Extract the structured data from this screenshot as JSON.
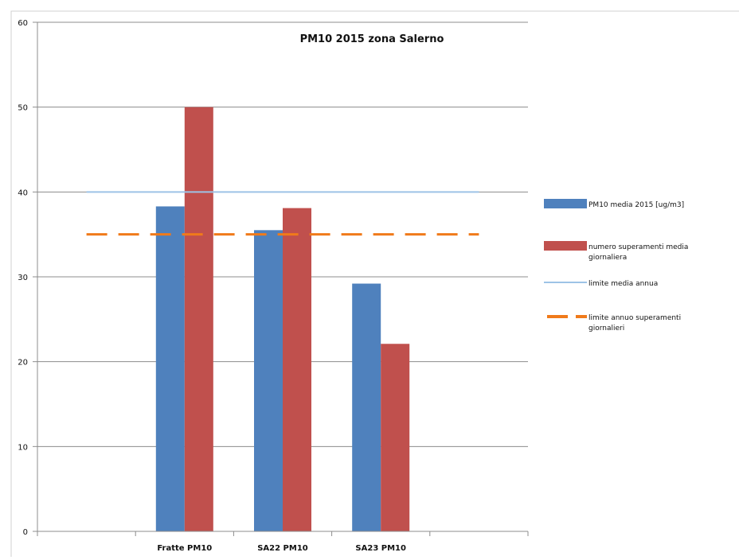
{
  "chart_data": {
    "type": "bar",
    "title": "PM10 2015 zona Salerno",
    "xlabel": "",
    "ylabel": "",
    "ylim": [
      0,
      60
    ],
    "yticks": [
      0,
      10,
      20,
      30,
      40,
      50,
      60
    ],
    "grid": true,
    "legend_position": "right",
    "categories": [
      "",
      "Fratte PM10",
      "SA22 PM10",
      "SA23 PM10",
      ""
    ],
    "series": [
      {
        "name": "PM10 media 2015 [ug/m3]",
        "kind": "bar",
        "color": "#4f81bd",
        "values": [
          null,
          38.3,
          35.5,
          29.2,
          null
        ]
      },
      {
        "name": "numero superamenti media giornaliera",
        "kind": "bar",
        "color": "#c0504d",
        "values": [
          null,
          50,
          38.1,
          22.1,
          null
        ]
      },
      {
        "name": "limite media annua",
        "kind": "line",
        "color": "#9dc3e6",
        "values": [
          40,
          40,
          40,
          40,
          40
        ]
      },
      {
        "name": "limite annuo superamenti giornalieri",
        "kind": "dashed-line",
        "color": "#f07a1a",
        "values": [
          35,
          35,
          35,
          35,
          35
        ]
      }
    ]
  }
}
